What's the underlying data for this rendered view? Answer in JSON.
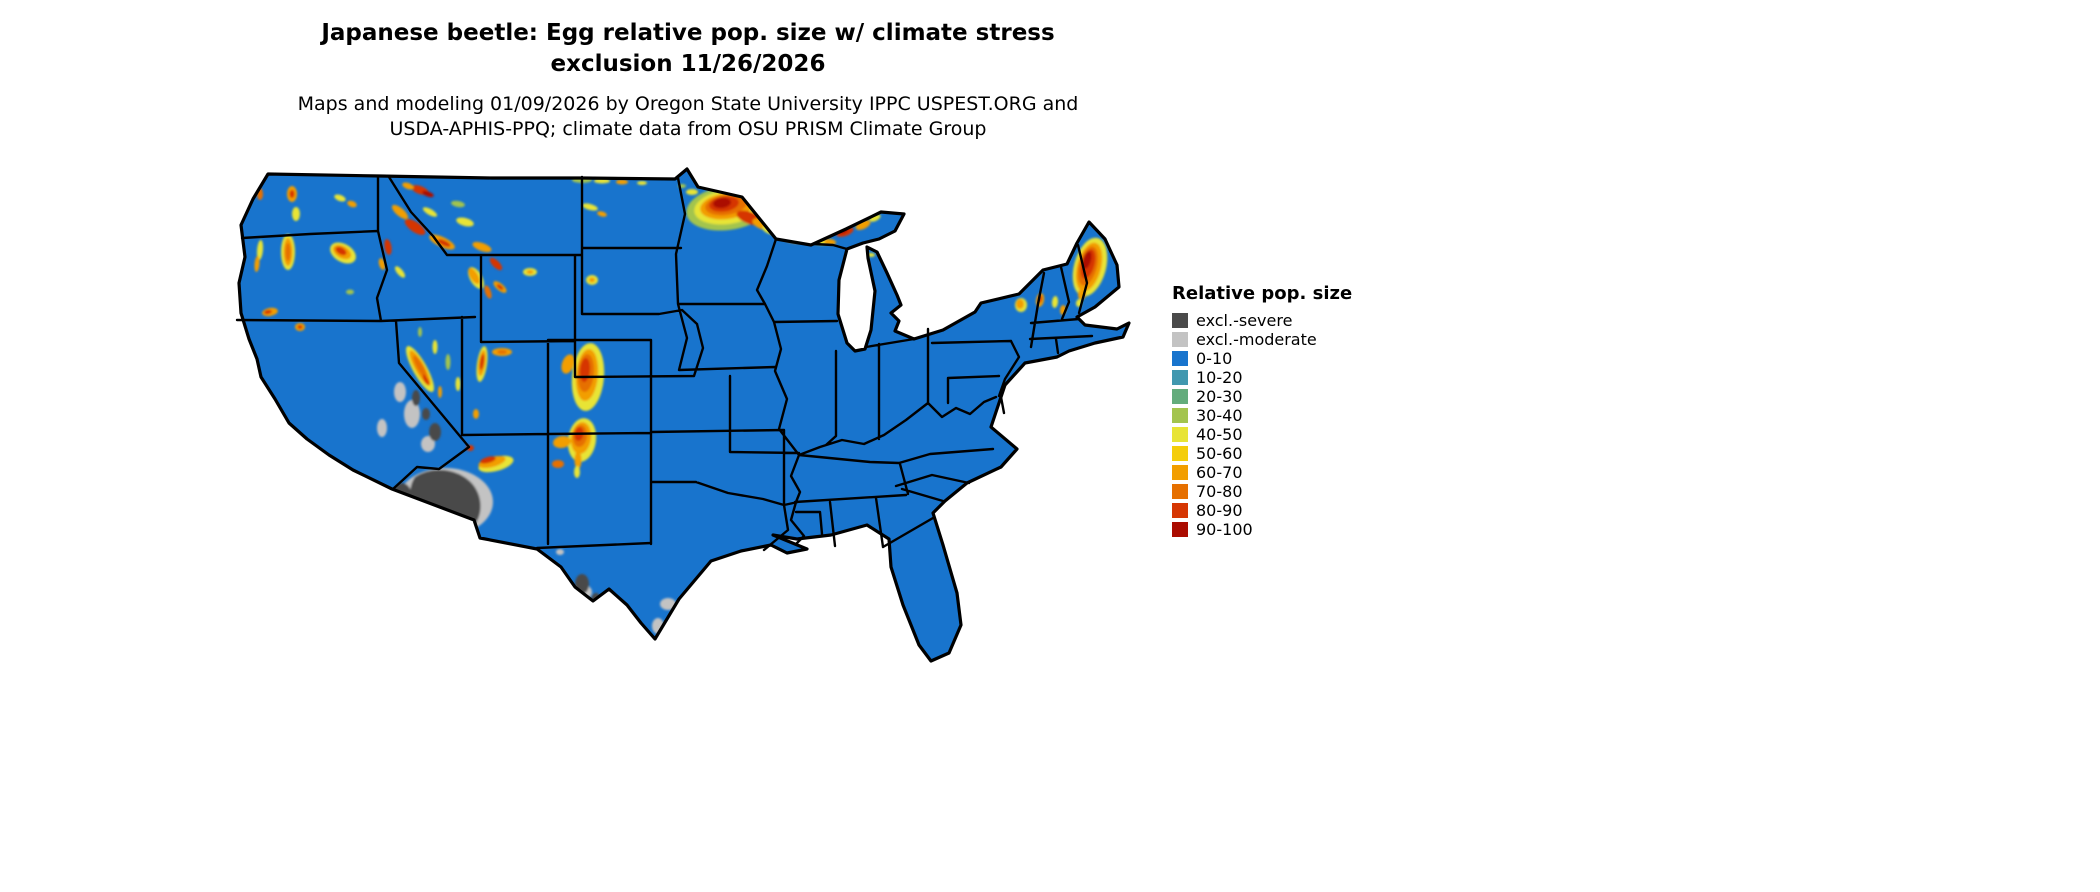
{
  "title": {
    "line1": "Japanese beetle: Egg relative pop. size w/ climate stress",
    "line2": "exclusion 11/26/2026"
  },
  "subtitle": {
    "line1": "Maps and modeling 01/09/2026 by Oregon State University IPPC USPEST.ORG and",
    "line2": "USDA-APHIS-PPQ; climate data from OSU PRISM Climate Group"
  },
  "legend": {
    "title": "Relative pop. size",
    "items": [
      {
        "label": "excl.-severe",
        "color": "#4a4a4a"
      },
      {
        "label": "excl.-moderate",
        "color": "#c3c3c3"
      },
      {
        "label": "0-10",
        "color": "#1874cd"
      },
      {
        "label": "10-20",
        "color": "#4198af"
      },
      {
        "label": "20-30",
        "color": "#63ac7c"
      },
      {
        "label": "30-40",
        "color": "#a3c44e"
      },
      {
        "label": "40-50",
        "color": "#e8e435"
      },
      {
        "label": "50-60",
        "color": "#f4cd0a"
      },
      {
        "label": "60-70",
        "color": "#f29e00"
      },
      {
        "label": "70-80",
        "color": "#e67000"
      },
      {
        "label": "80-90",
        "color": "#d63603"
      },
      {
        "label": "90-100",
        "color": "#ab0c00"
      }
    ]
  },
  "map": {
    "region": "Contiguous United States",
    "land_color": "#1874cd",
    "border_color": "#000000",
    "background_color": "#ffffff"
  }
}
